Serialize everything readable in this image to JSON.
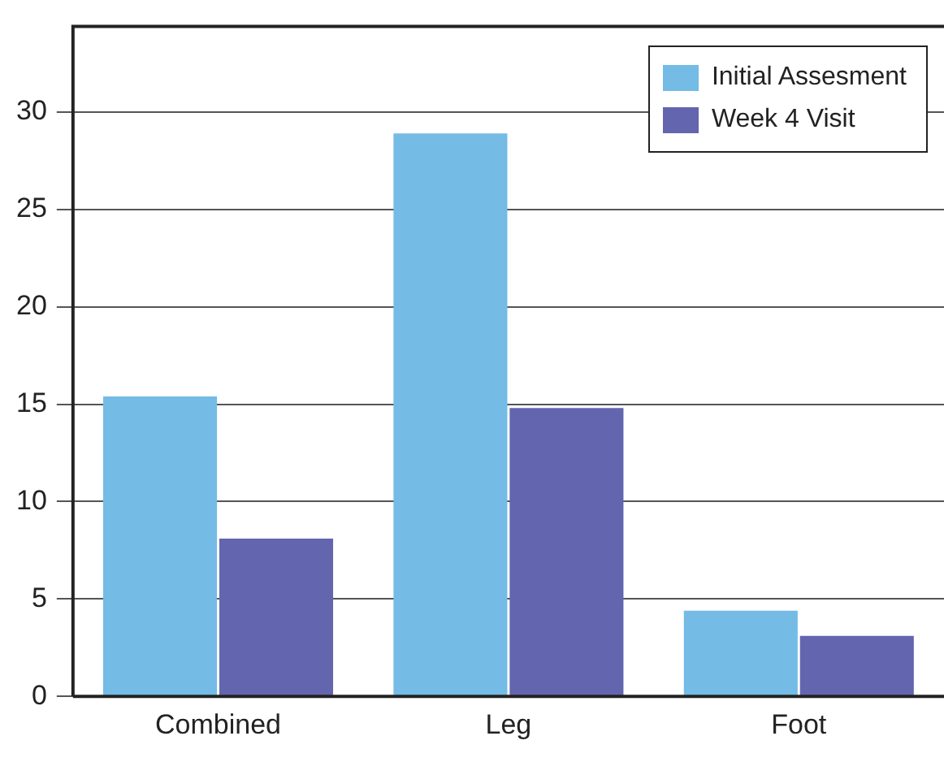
{
  "chart_data": {
    "type": "bar",
    "categories": [
      "Combined",
      "Leg",
      "Foot"
    ],
    "series": [
      {
        "name": "Initial Assesment",
        "color": "#74bbe6",
        "values": [
          15.4,
          28.9,
          4.4
        ]
      },
      {
        "name": "Week 4 Visit",
        "color": "#6365ae",
        "values": [
          8.1,
          14.8,
          3.1
        ]
      }
    ],
    "ylim": [
      0,
      34.4
    ],
    "yticks": [
      0,
      5,
      10,
      15,
      20,
      25,
      30
    ],
    "grid": "y",
    "legend": "top right"
  }
}
